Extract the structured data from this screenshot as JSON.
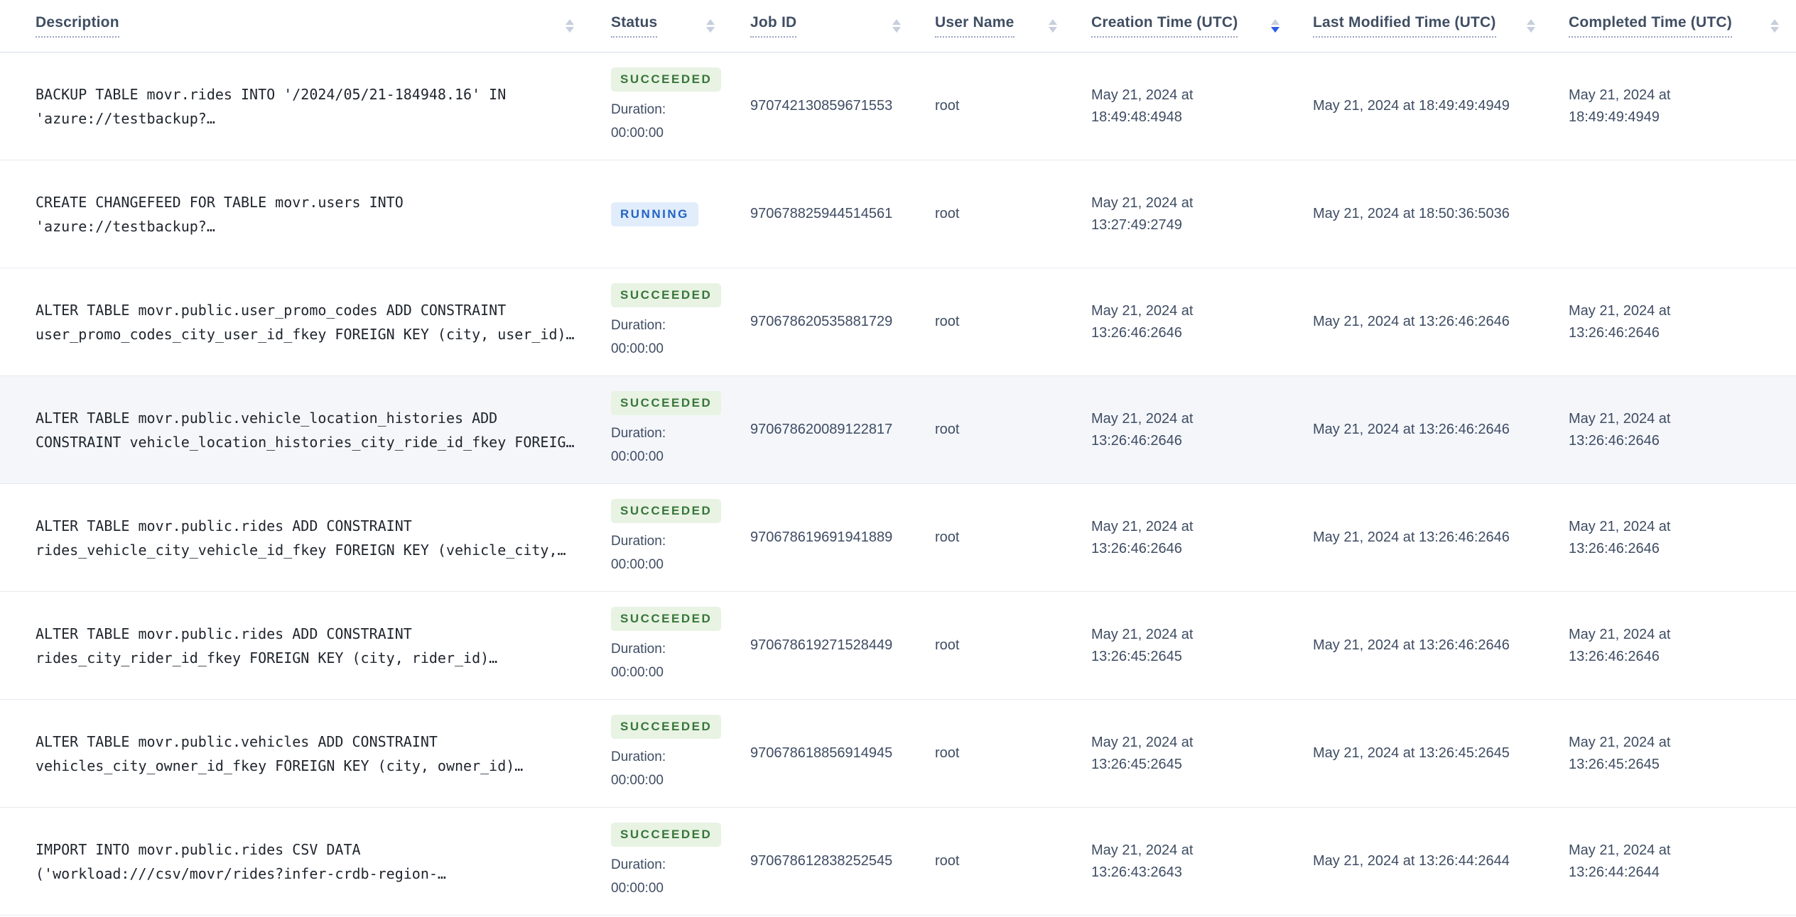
{
  "header": {
    "columns": [
      {
        "id": "description",
        "label": "Description",
        "sorted": null
      },
      {
        "id": "status",
        "label": "Status",
        "sorted": null
      },
      {
        "id": "job_id",
        "label": "Job ID",
        "sorted": null
      },
      {
        "id": "user_name",
        "label": "User Name",
        "sorted": null
      },
      {
        "id": "creation_time",
        "label": "Creation Time (UTC)",
        "sorted": "desc"
      },
      {
        "id": "last_modified_time",
        "label": "Last Modified Time (UTC)",
        "sorted": null
      },
      {
        "id": "completed_time",
        "label": "Completed Time (UTC)",
        "sorted": null
      }
    ]
  },
  "colors": {
    "sort_active": "#2b5ce2",
    "succeeded_text": "#38763a",
    "succeeded_bg": "#e8f3e3",
    "running_text": "#2264c4",
    "running_bg": "#e2edfb",
    "row_highlight_bg": "#f4f6fa"
  },
  "rows": [
    {
      "description": "BACKUP TABLE movr.rides INTO '/2024/05/21-184948.16' IN 'azure://testbackup?…",
      "status": "SUCCEEDED",
      "duration_label": "Duration:",
      "duration": "00:00:00",
      "job_id": "970742130859671553",
      "user_name": "root",
      "creation_time": "May 21, 2024 at 18:49:48:4948",
      "last_modified_time": "May 21, 2024 at 18:49:49:4949",
      "completed_time": "May 21, 2024 at 18:49:49:4949",
      "highlighted": false
    },
    {
      "description": "CREATE CHANGEFEED FOR TABLE movr.users INTO 'azure://testbackup?…",
      "status": "RUNNING",
      "duration_label": "",
      "duration": "",
      "job_id": "970678825944514561",
      "user_name": "root",
      "creation_time": "May 21, 2024 at 13:27:49:2749",
      "last_modified_time": "May 21, 2024 at 18:50:36:5036",
      "completed_time": "",
      "highlighted": false
    },
    {
      "description": "ALTER TABLE movr.public.user_promo_codes ADD CONSTRAINT user_promo_codes_city_user_id_fkey FOREIGN KEY (city, user_id)…",
      "status": "SUCCEEDED",
      "duration_label": "Duration:",
      "duration": "00:00:00",
      "job_id": "970678620535881729",
      "user_name": "root",
      "creation_time": "May 21, 2024 at 13:26:46:2646",
      "last_modified_time": "May 21, 2024 at 13:26:46:2646",
      "completed_time": "May 21, 2024 at 13:26:46:2646",
      "highlighted": false
    },
    {
      "description": "ALTER TABLE movr.public.vehicle_location_histories ADD CONSTRAINT vehicle_location_histories_city_ride_id_fkey FOREIG…",
      "status": "SUCCEEDED",
      "duration_label": "Duration:",
      "duration": "00:00:00",
      "job_id": "970678620089122817",
      "user_name": "root",
      "creation_time": "May 21, 2024 at 13:26:46:2646",
      "last_modified_time": "May 21, 2024 at 13:26:46:2646",
      "completed_time": "May 21, 2024 at 13:26:46:2646",
      "highlighted": true
    },
    {
      "description": "ALTER TABLE movr.public.rides ADD CONSTRAINT rides_vehicle_city_vehicle_id_fkey FOREIGN KEY (vehicle_city,…",
      "status": "SUCCEEDED",
      "duration_label": "Duration:",
      "duration": "00:00:00",
      "job_id": "970678619691941889",
      "user_name": "root",
      "creation_time": "May 21, 2024 at 13:26:46:2646",
      "last_modified_time": "May 21, 2024 at 13:26:46:2646",
      "completed_time": "May 21, 2024 at 13:26:46:2646",
      "highlighted": false
    },
    {
      "description": "ALTER TABLE movr.public.rides ADD CONSTRAINT rides_city_rider_id_fkey FOREIGN KEY (city, rider_id)…",
      "status": "SUCCEEDED",
      "duration_label": "Duration:",
      "duration": "00:00:00",
      "job_id": "970678619271528449",
      "user_name": "root",
      "creation_time": "May 21, 2024 at 13:26:45:2645",
      "last_modified_time": "May 21, 2024 at 13:26:46:2646",
      "completed_time": "May 21, 2024 at 13:26:46:2646",
      "highlighted": false
    },
    {
      "description": "ALTER TABLE movr.public.vehicles ADD CONSTRAINT vehicles_city_owner_id_fkey FOREIGN KEY (city, owner_id)…",
      "status": "SUCCEEDED",
      "duration_label": "Duration:",
      "duration": "00:00:00",
      "job_id": "970678618856914945",
      "user_name": "root",
      "creation_time": "May 21, 2024 at 13:26:45:2645",
      "last_modified_time": "May 21, 2024 at 13:26:45:2645",
      "completed_time": "May 21, 2024 at 13:26:45:2645",
      "highlighted": false
    },
    {
      "description": "IMPORT INTO movr.public.rides CSV DATA ('workload:///csv/movr/rides?infer-crdb-region-…",
      "status": "SUCCEEDED",
      "duration_label": "Duration:",
      "duration": "00:00:00",
      "job_id": "970678612838252545",
      "user_name": "root",
      "creation_time": "May 21, 2024 at 13:26:43:2643",
      "last_modified_time": "May 21, 2024 at 13:26:44:2644",
      "completed_time": "May 21, 2024 at 13:26:44:2644",
      "highlighted": false
    }
  ]
}
